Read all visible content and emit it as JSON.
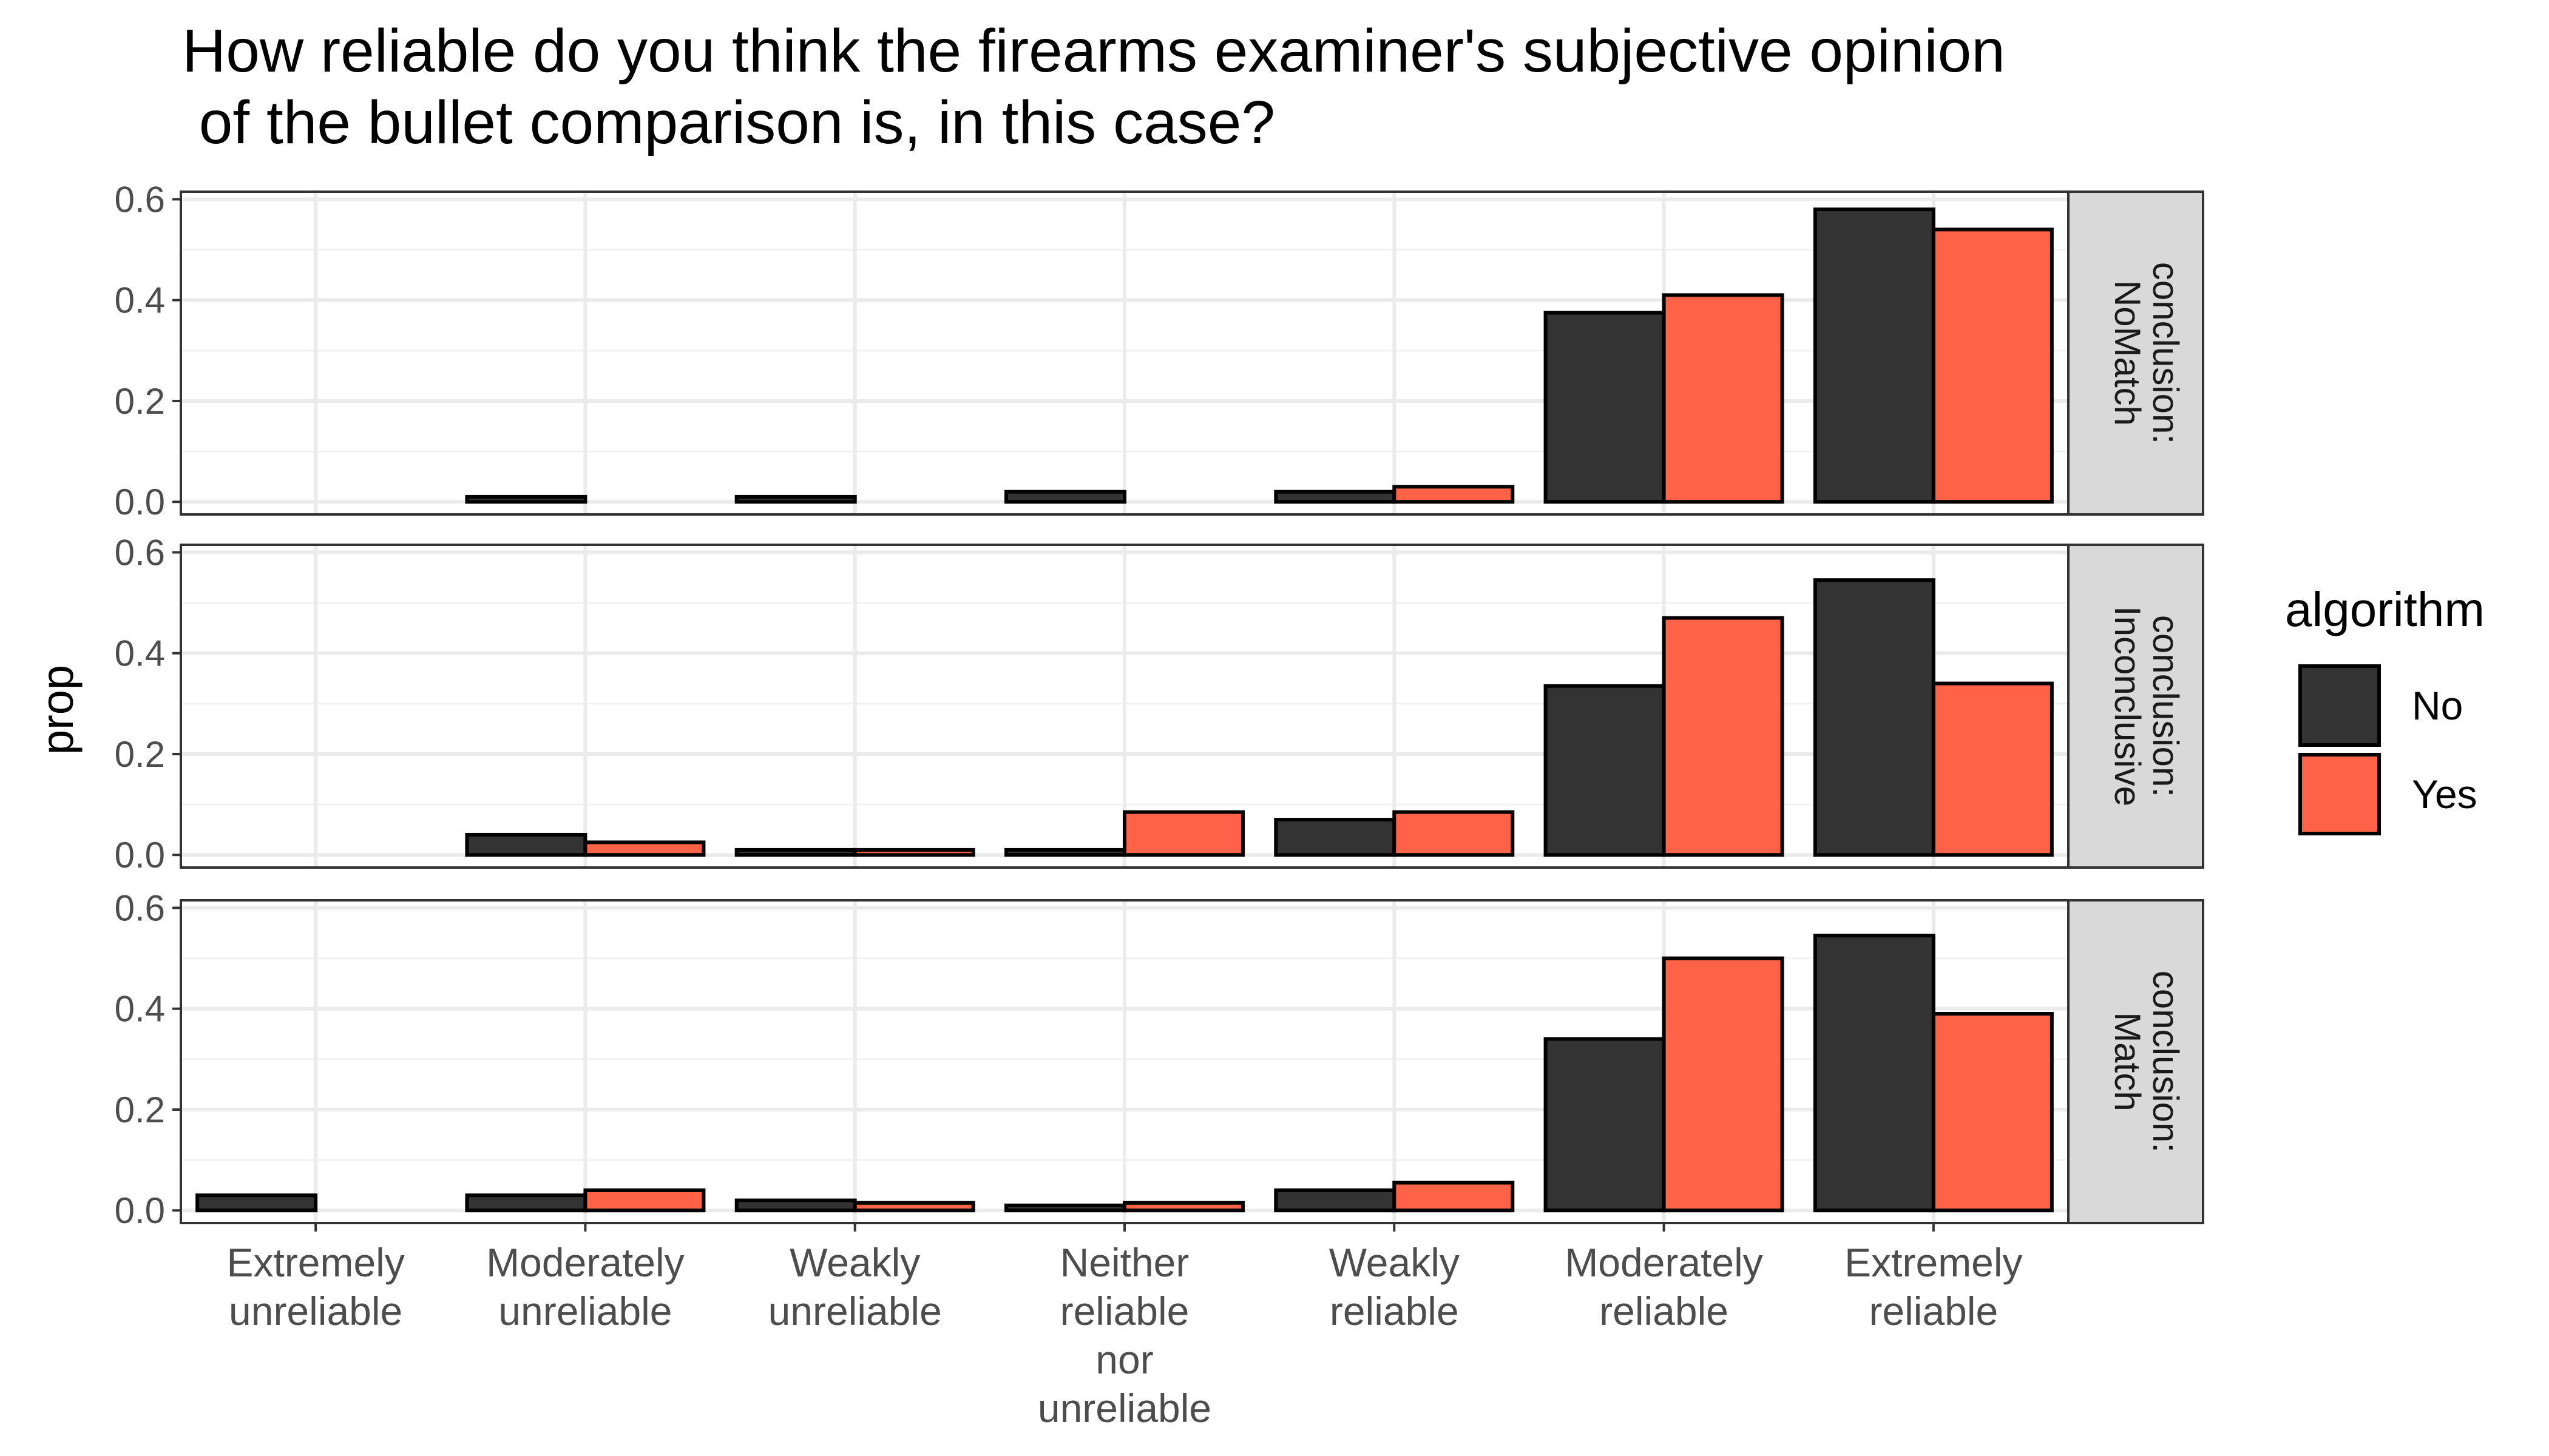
{
  "chart_data": {
    "type": "bar",
    "title": "How reliable do you think the firearms examiner's subjective opinion\n of the bullet comparison is, in this case?",
    "xlabel": "",
    "ylabel": "prop",
    "ylim": [
      -0.025,
      0.615
    ],
    "yticks": [
      0.0,
      0.2,
      0.4,
      0.6
    ],
    "ytick_labels": [
      "0.0",
      "0.2",
      "0.4",
      "0.6"
    ],
    "categories": [
      "Extremely\nunreliable",
      "Moderately\nunreliable",
      "Weakly\nunreliable",
      "Neither\nreliable\nnor\nunreliable",
      "Weakly\nreliable",
      "Moderately\nreliable",
      "Extremely\nreliable"
    ],
    "grid": true,
    "legend": {
      "title": "algorithm",
      "position": "right",
      "entries": [
        {
          "label": "No",
          "color": "#333333"
        },
        {
          "label": "Yes",
          "color": "#FF6347"
        }
      ]
    },
    "facets": [
      {
        "label": [
          "conclusion:",
          "NoMatch"
        ],
        "series": [
          {
            "name": "No",
            "values": [
              null,
              0.01,
              0.01,
              0.02,
              0.02,
              0.375,
              0.58
            ]
          },
          {
            "name": "Yes",
            "values": [
              null,
              null,
              null,
              null,
              0.03,
              0.41,
              0.54
            ]
          }
        ]
      },
      {
        "label": [
          "conclusion:",
          "Inconclusive"
        ],
        "series": [
          {
            "name": "No",
            "values": [
              null,
              0.04,
              0.01,
              0.01,
              0.07,
              0.335,
              0.545
            ]
          },
          {
            "name": "Yes",
            "values": [
              null,
              0.025,
              0.01,
              0.085,
              0.085,
              0.47,
              0.34
            ]
          }
        ]
      },
      {
        "label": [
          "conclusion:",
          "Match"
        ],
        "series": [
          {
            "name": "No",
            "values": [
              0.03,
              0.03,
              0.02,
              0.01,
              0.04,
              0.34,
              0.545
            ]
          },
          {
            "name": "Yes",
            "values": [
              null,
              0.04,
              0.015,
              0.015,
              0.055,
              0.5,
              0.39
            ]
          }
        ]
      }
    ]
  }
}
